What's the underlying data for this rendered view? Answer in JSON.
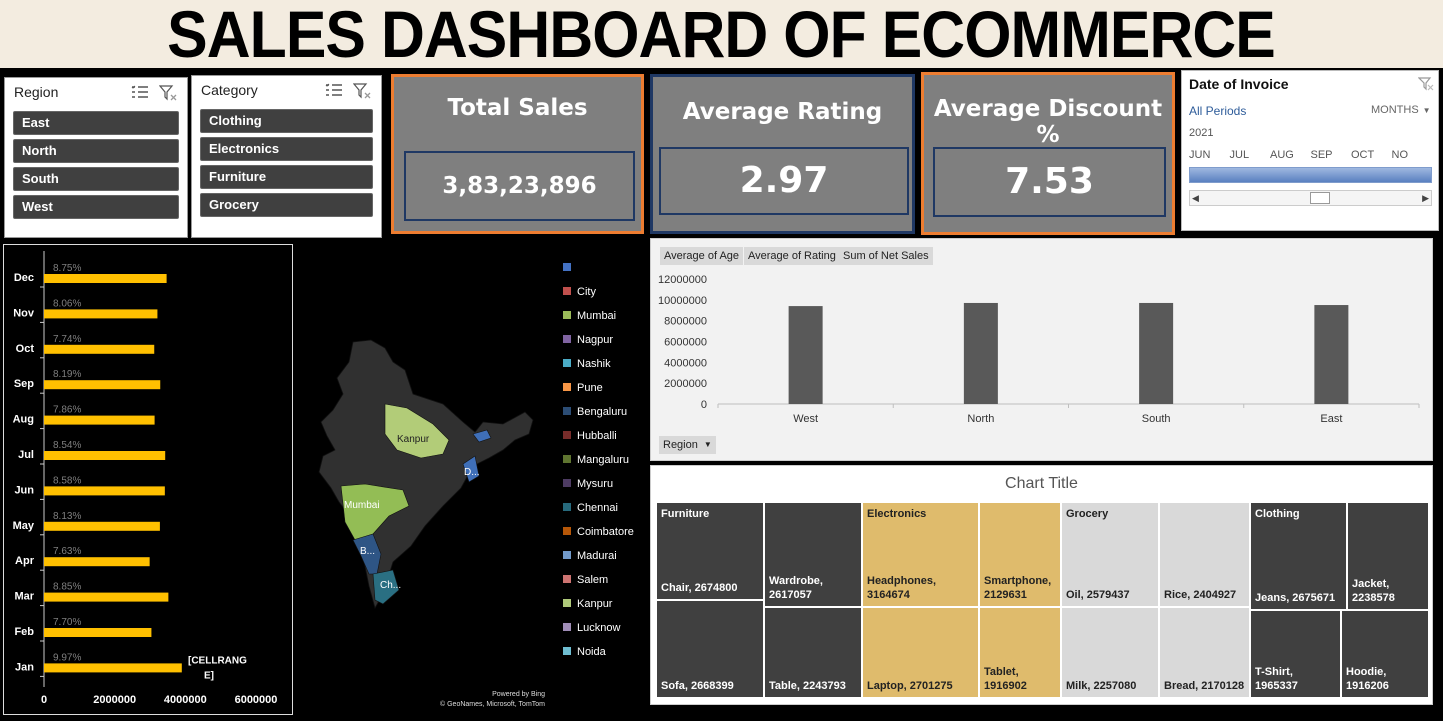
{
  "title": "SALES DASHBOARD OF ECOMMERCE",
  "region_slicer": {
    "header": "Region",
    "items": [
      "East",
      "North",
      "South",
      "West"
    ]
  },
  "category_slicer": {
    "header": "Category",
    "items": [
      "Clothing",
      "Electronics",
      "Furniture",
      "Grocery"
    ]
  },
  "kpis": {
    "total_sales": {
      "label": "Total Sales",
      "value": "3,83,23,896"
    },
    "avg_rating": {
      "label": "Average Rating",
      "value": "2.97"
    },
    "avg_discount": {
      "label": "Average Discount %",
      "value": "7.53"
    }
  },
  "timeline": {
    "title": "Date of Invoice",
    "period_label": "All Periods",
    "unit": "MONTHS",
    "year": "2021",
    "months": [
      "JUN",
      "JUL",
      "AUG",
      "SEP",
      "OCT",
      "NO"
    ]
  },
  "chart_data": [
    {
      "type": "bar",
      "orientation": "horizontal",
      "categories": [
        "Jan",
        "Feb",
        "Mar",
        "Apr",
        "May",
        "Jun",
        "Jul",
        "Aug",
        "Sep",
        "Oct",
        "Nov",
        "Dec"
      ],
      "values": [
        3900000,
        3040000,
        3520000,
        2990000,
        3280000,
        3420000,
        3430000,
        3130000,
        3290000,
        3120000,
        3210000,
        3470000
      ],
      "data_labels": [
        "9.97%",
        "7.70%",
        "8.85%",
        "7.63%",
        "8.13%",
        "8.58%",
        "8.54%",
        "7.86%",
        "8.19%",
        "7.74%",
        "8.06%",
        "8.75%"
      ],
      "overflow_label": "[CELLRANGE]",
      "x_ticks": [
        "0",
        "2000000",
        "4000000",
        "6000000"
      ],
      "xlim": [
        0,
        6000000
      ],
      "color": "#ffc000"
    },
    {
      "type": "bar",
      "categories": [
        "West",
        "North",
        "South",
        "East"
      ],
      "values": [
        9400000,
        9700000,
        9700000,
        9500000
      ],
      "y_ticks": [
        "0",
        "2000000",
        "4000000",
        "6000000",
        "8000000",
        "10000000",
        "12000000"
      ],
      "ylim": [
        0,
        12000000
      ],
      "field_buttons": [
        "Average of Age",
        "Average of Rating",
        "Sum of Net Sales"
      ],
      "axis_button": "Region",
      "color": "#595959"
    },
    {
      "type": "treemap",
      "title": "Chart Title",
      "groups": [
        {
          "name": "Furniture",
          "items": [
            {
              "label": "Chair, 2674800",
              "value": 2674800
            },
            {
              "label": "Sofa, 2668399",
              "value": 2668399
            },
            {
              "label": "Wardrobe, 2617057",
              "value": 2617057
            },
            {
              "label": "Table, 2243793",
              "value": 2243793
            }
          ]
        },
        {
          "name": "Electronics",
          "items": [
            {
              "label": "Headphones, 3164674",
              "value": 3164674
            },
            {
              "label": "Laptop, 2701275",
              "value": 2701275
            },
            {
              "label": "Smartphone, 2129631",
              "value": 2129631
            },
            {
              "label": "Tablet, 1916902",
              "value": 1916902
            }
          ]
        },
        {
          "name": "Grocery",
          "items": [
            {
              "label": "Oil, 2579437",
              "value": 2579437
            },
            {
              "label": "Milk, 2257080",
              "value": 2257080
            },
            {
              "label": "Rice, 2404927",
              "value": 2404927
            },
            {
              "label": "Bread, 2170128",
              "value": 2170128
            }
          ]
        },
        {
          "name": "Clothing",
          "items": [
            {
              "label": "Jeans, 2675671",
              "value": 2675671
            },
            {
              "label": "Jacket, 2238578",
              "value": 2238578
            },
            {
              "label": "T-Shirt, 1965337",
              "value": 1965337
            },
            {
              "label": "Hoodie, 1916206",
              "value": 1916206
            }
          ]
        }
      ]
    }
  ],
  "map": {
    "legend": [
      {
        "label": "",
        "color": "#4472c4"
      },
      {
        "label": "City",
        "color": "#c0504d"
      },
      {
        "label": "Mumbai",
        "color": "#9bbb59"
      },
      {
        "label": "Nagpur",
        "color": "#8064a2"
      },
      {
        "label": "Nashik",
        "color": "#4bacc6"
      },
      {
        "label": "Pune",
        "color": "#f79646"
      },
      {
        "label": "Bengaluru",
        "color": "#2c4d75"
      },
      {
        "label": "Hubballi",
        "color": "#772c2a"
      },
      {
        "label": "Mangaluru",
        "color": "#5f7530"
      },
      {
        "label": "Mysuru",
        "color": "#4d3b62"
      },
      {
        "label": "Chennai",
        "color": "#276a7c"
      },
      {
        "label": "Coimbatore",
        "color": "#b65708"
      },
      {
        "label": "Madurai",
        "color": "#729aca"
      },
      {
        "label": "Salem",
        "color": "#cd7371"
      },
      {
        "label": "Kanpur",
        "color": "#afc97a"
      },
      {
        "label": "Lucknow",
        "color": "#a08db7"
      },
      {
        "label": "Noida",
        "color": "#6fbdd1"
      }
    ],
    "region_labels": {
      "kanpur": "Kanpur",
      "mumbai": "Mumbai",
      "bengaluru": "B...",
      "chennai": "Ch...",
      "east": "D..."
    },
    "credit_line1": "Powered by Bing",
    "credit_line2": "© GeoNames, Microsoft, TomTom"
  }
}
